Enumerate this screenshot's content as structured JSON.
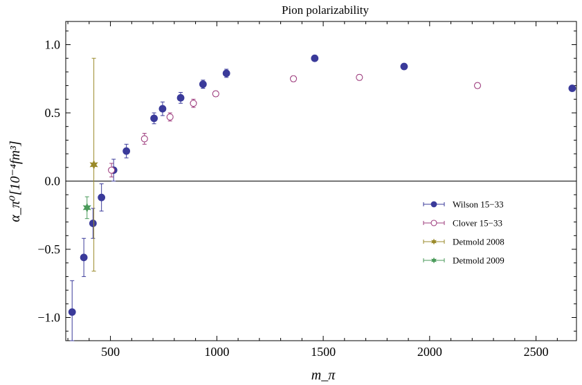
{
  "chart_data": {
    "type": "scatter",
    "title": "Pion polarizability",
    "xlabel": "m_π",
    "ylabel": "α_π⁰[10⁻⁴fm³]",
    "xlim": [
      290,
      2690
    ],
    "ylim": [
      -1.17,
      1.17
    ],
    "x_ticks": [
      500,
      1000,
      1500,
      2000,
      2500
    ],
    "y_ticks": [
      -1.0,
      -0.5,
      0.0,
      0.5,
      1.0
    ],
    "x_tick_labels": [
      "500",
      "1000",
      "1500",
      "2000",
      "2500"
    ],
    "y_tick_labels": [
      "−1.0",
      "−0.5",
      "0.0",
      "0.5",
      "1.0"
    ],
    "zero_line": true,
    "legend_position": "right",
    "series": [
      {
        "name": "Wilson 15−33",
        "color": "#3a3a9a",
        "marker": "filled-circle",
        "points": [
          {
            "x": 320,
            "y": -0.96,
            "err": 0.23
          },
          {
            "x": 375,
            "y": -0.56,
            "err": 0.14
          },
          {
            "x": 418,
            "y": -0.31,
            "err": 0.11
          },
          {
            "x": 458,
            "y": -0.12,
            "err": 0.1
          },
          {
            "x": 515,
            "y": 0.08,
            "err": 0.08
          },
          {
            "x": 575,
            "y": 0.22,
            "err": 0.05
          },
          {
            "x": 705,
            "y": 0.46,
            "err": 0.04
          },
          {
            "x": 745,
            "y": 0.53,
            "err": 0.05
          },
          {
            "x": 830,
            "y": 0.61,
            "err": 0.04
          },
          {
            "x": 935,
            "y": 0.71,
            "err": 0.03
          },
          {
            "x": 1045,
            "y": 0.79,
            "err": 0.03
          },
          {
            "x": 1460,
            "y": 0.9,
            "err": 0.02
          },
          {
            "x": 1880,
            "y": 0.84,
            "err": 0.02
          },
          {
            "x": 2670,
            "y": 0.68,
            "err": 0.01
          }
        ]
      },
      {
        "name": "Clover 15−33",
        "color": "#9e3d7e",
        "marker": "open-circle",
        "points": [
          {
            "x": 505,
            "y": 0.08,
            "err": 0.05
          },
          {
            "x": 660,
            "y": 0.31,
            "err": 0.04
          },
          {
            "x": 780,
            "y": 0.47,
            "err": 0.03
          },
          {
            "x": 890,
            "y": 0.57,
            "err": 0.03
          },
          {
            "x": 995,
            "y": 0.64,
            "err": 0.02
          },
          {
            "x": 1360,
            "y": 0.75,
            "err": 0.02
          },
          {
            "x": 1670,
            "y": 0.76,
            "err": 0.02
          },
          {
            "x": 2225,
            "y": 0.7,
            "err": 0.02
          }
        ]
      },
      {
        "name": "Detmold 2008",
        "color": "#9a8a2a",
        "marker": "star",
        "points": [
          {
            "x": 422,
            "y": 0.12,
            "err_up": 0.78,
            "err_down": 0.78
          }
        ]
      },
      {
        "name": "Detmold 2009",
        "color": "#4a9a5a",
        "marker": "star",
        "points": [
          {
            "x": 390,
            "y": -0.195,
            "err_up": 0.08,
            "err_down": 0.08
          }
        ]
      }
    ]
  }
}
